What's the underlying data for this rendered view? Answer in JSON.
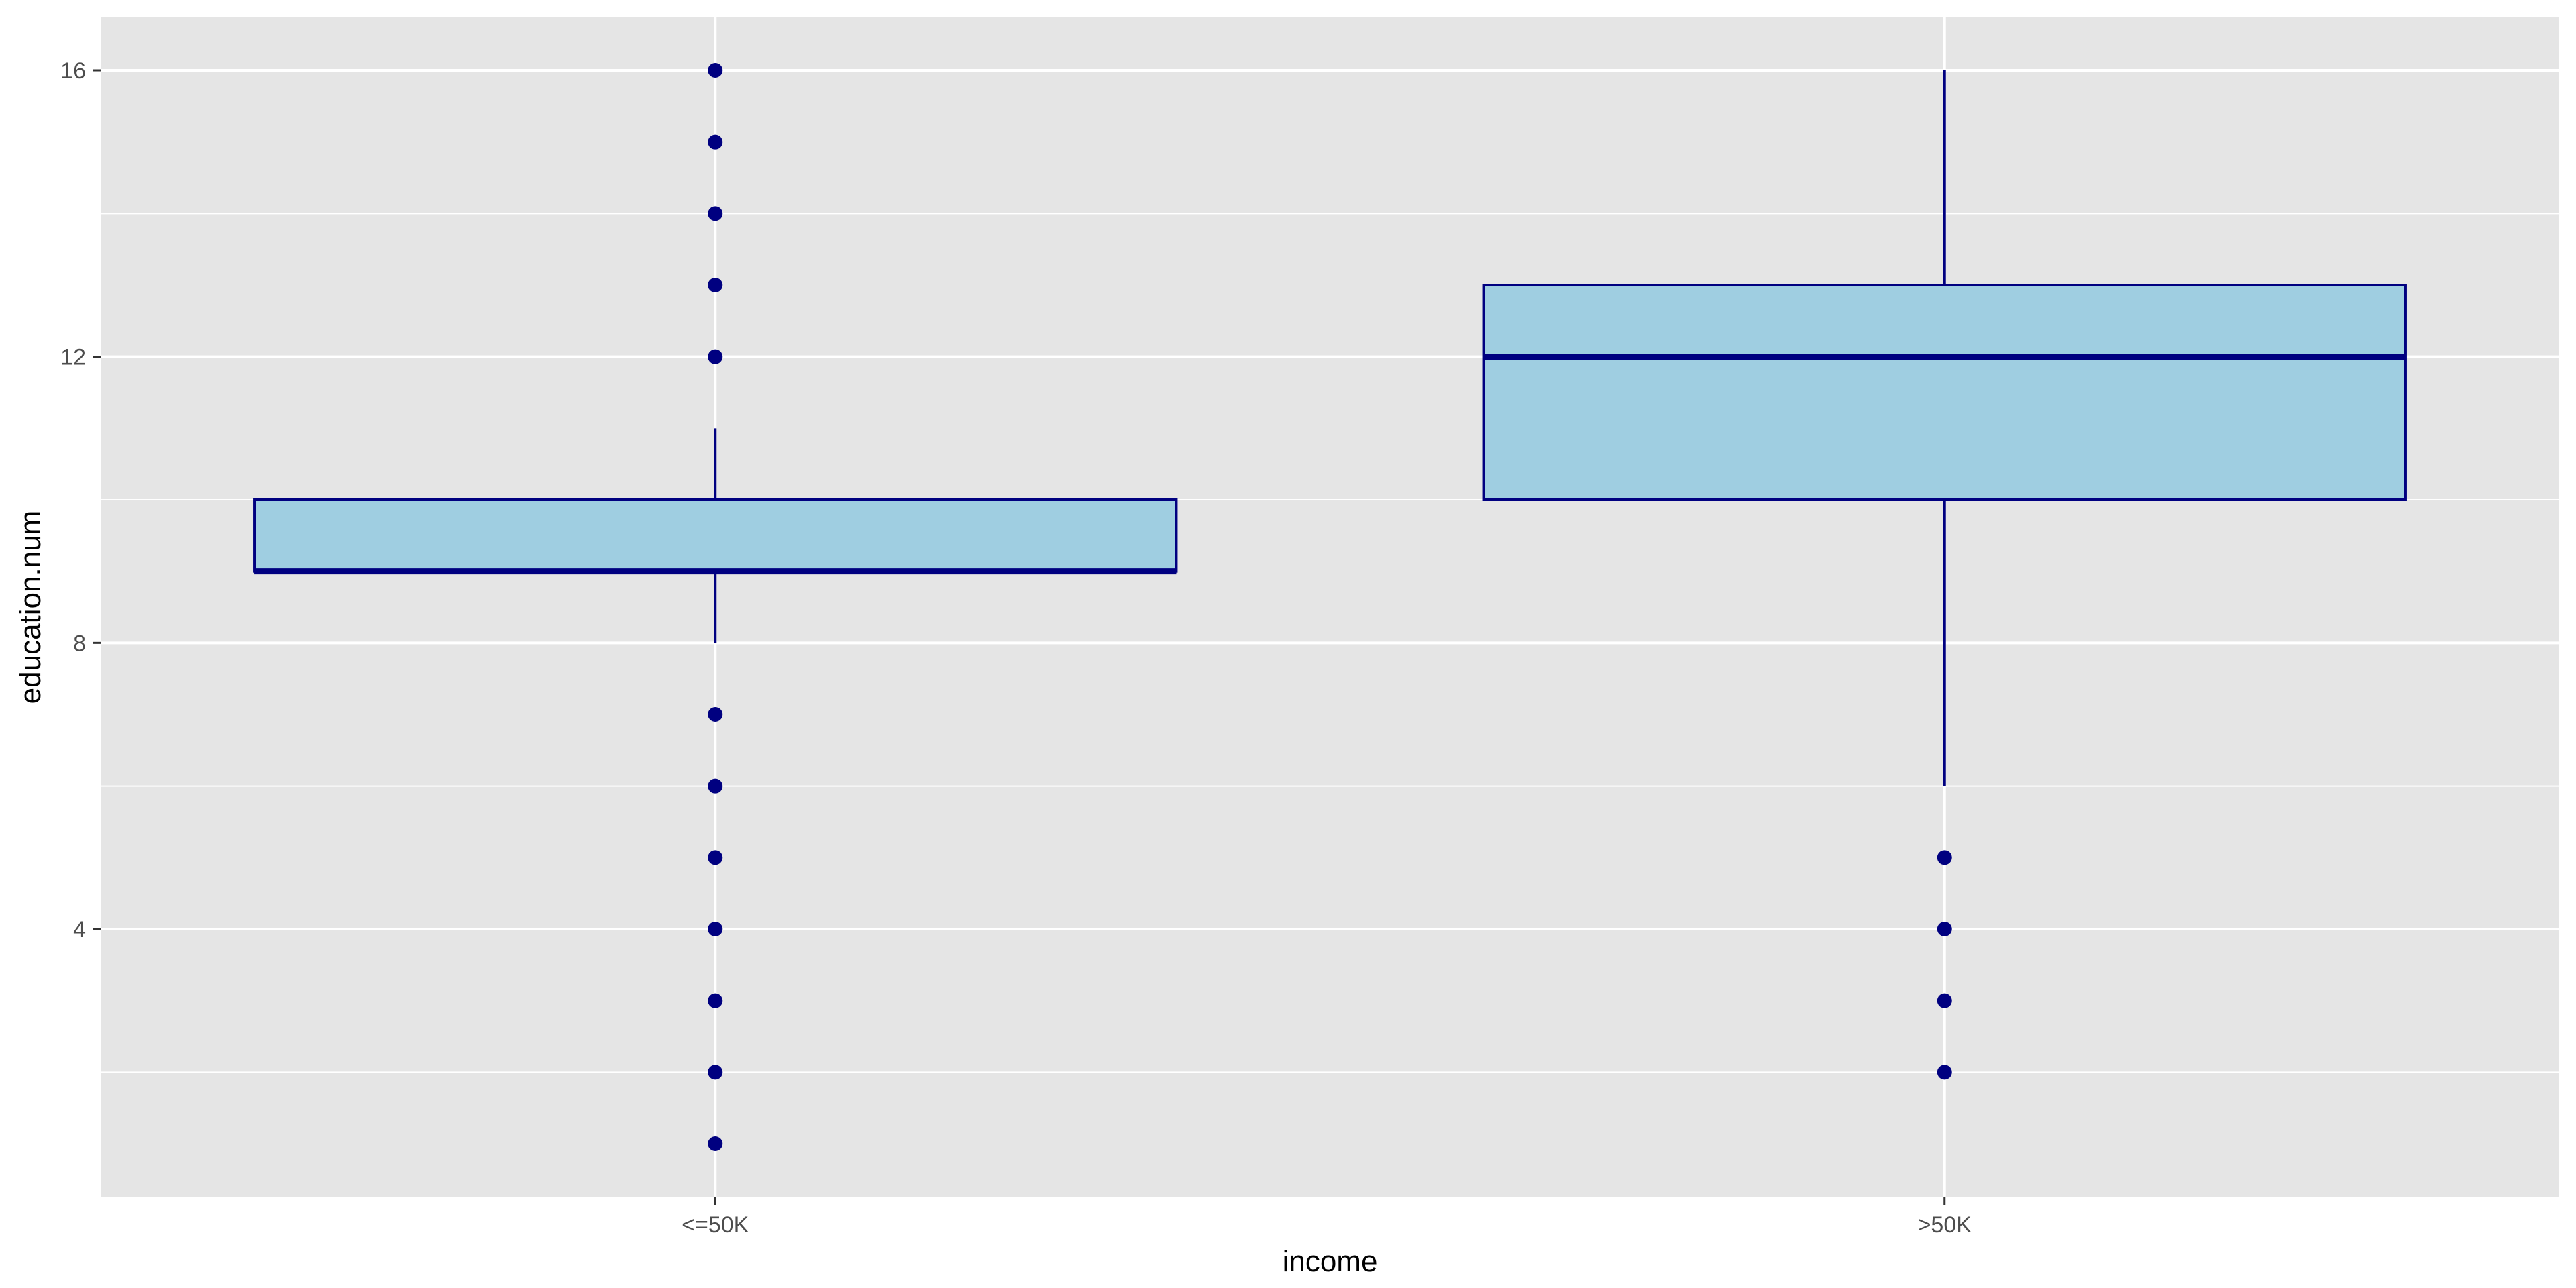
{
  "chart_data": {
    "type": "boxplot",
    "xlabel": "income",
    "ylabel": "education.num",
    "categories": [
      "<=50K",
      ">50K"
    ],
    "ylim": [
      0.25,
      16.75
    ],
    "yticks": [
      4,
      8,
      12,
      16
    ],
    "grid": true,
    "boxes": [
      {
        "category": "<=50K",
        "lower_whisker": 8,
        "q1": 9,
        "median": 9,
        "q3": 10,
        "upper_whisker": 11,
        "outliers": [
          1,
          2,
          3,
          4,
          5,
          6,
          7,
          12,
          13,
          14,
          15,
          16
        ]
      },
      {
        "category": ">50K",
        "lower_whisker": 6,
        "q1": 10,
        "median": 12,
        "q3": 13,
        "upper_whisker": 16,
        "outliers": [
          2,
          3,
          4,
          5
        ]
      }
    ],
    "colors": {
      "panel": "#e5e5e5",
      "grid": "#ffffff",
      "box_fill": "#9fcee1",
      "box_line": "#000080",
      "point": "#000080"
    }
  }
}
